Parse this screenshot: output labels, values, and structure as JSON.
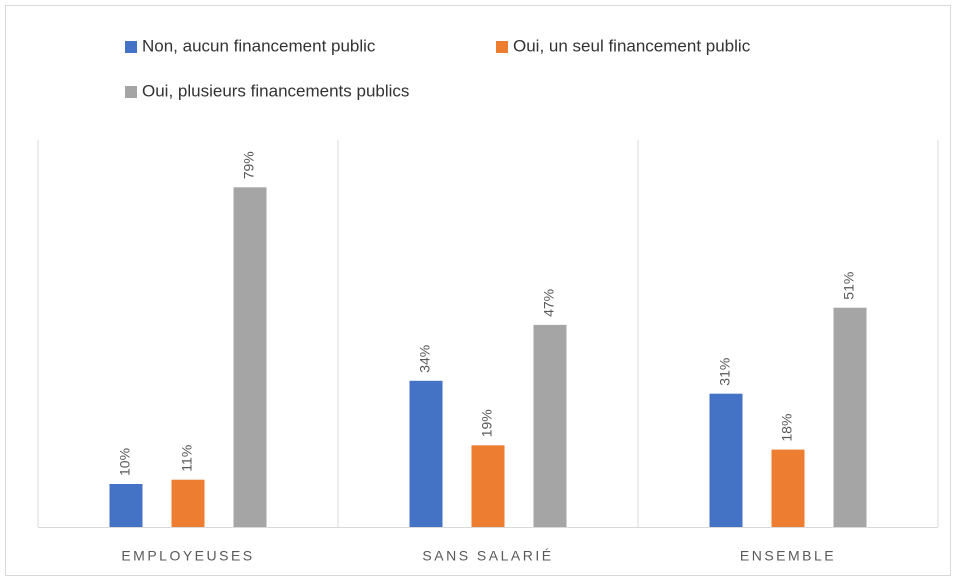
{
  "chart_data": {
    "type": "bar",
    "categories": [
      "EMPLOYEUSES",
      "SANS SALARIÉ",
      "ENSEMBLE"
    ],
    "series": [
      {
        "name": "Non, aucun financement public",
        "color": "#4472c4",
        "values": [
          10,
          34,
          31
        ],
        "value_labels": [
          "10%",
          "34%",
          "31%"
        ]
      },
      {
        "name": "Oui, un seul financement public",
        "color": "#ed7d31",
        "values": [
          11,
          19,
          18
        ],
        "value_labels": [
          "11%",
          "19%",
          "18%"
        ]
      },
      {
        "name": "Oui, plusieurs financements publics",
        "color": "#a5a5a5",
        "values": [
          79,
          47,
          51
        ],
        "value_labels": [
          "79%",
          "47%",
          "51%"
        ]
      }
    ],
    "legend": "top"
  }
}
